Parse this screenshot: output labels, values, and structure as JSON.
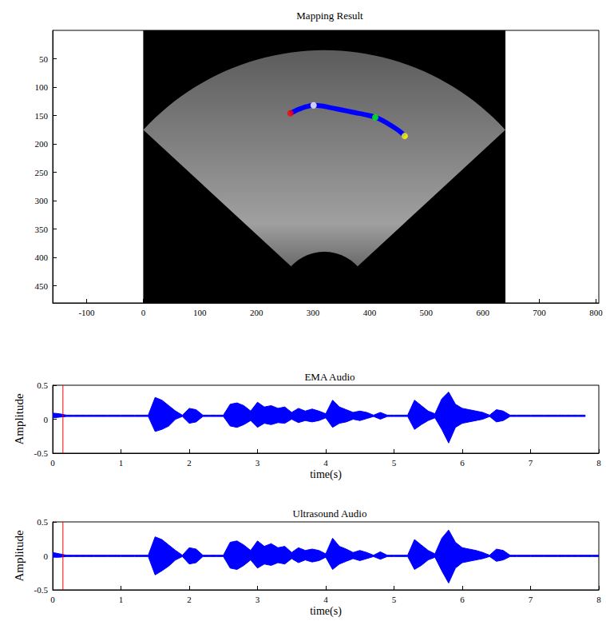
{
  "chart_data": [
    {
      "type": "line",
      "title": "Mapping Result",
      "xlim": [
        -160,
        805
      ],
      "xticks": [
        -100,
        0,
        100,
        200,
        300,
        400,
        500,
        600,
        700,
        800
      ],
      "ylim": [
        480,
        0
      ],
      "yticks": [
        50,
        100,
        150,
        200,
        250,
        300,
        350,
        400,
        450
      ],
      "grid": false,
      "image_extent": {
        "x": [
          0,
          640
        ],
        "y": [
          0,
          480
        ]
      },
      "x": [
        260,
        270,
        280,
        290,
        301,
        315,
        330,
        345,
        360,
        375,
        390,
        410,
        425,
        440,
        452,
        462
      ],
      "values": [
        146,
        141,
        137,
        134,
        132,
        133,
        136,
        139,
        142,
        145,
        148,
        153,
        160,
        169,
        177,
        186
      ],
      "color": "#0000ff",
      "markers": [
        {
          "x": 260,
          "y": 146,
          "color": "#ff0000"
        },
        {
          "x": 301,
          "y": 132,
          "color": "#ffffff"
        },
        {
          "x": 410,
          "y": 153,
          "color": "#00ff00"
        },
        {
          "x": 462,
          "y": 186,
          "color": "#ffff00"
        }
      ]
    },
    {
      "type": "area",
      "title": "EMA Audio",
      "xlabel": "time(s)",
      "ylabel": "Amplitude",
      "xlim": [
        0,
        8
      ],
      "xticks": [
        0,
        1,
        2,
        3,
        4,
        5,
        6,
        7,
        8
      ],
      "ylim": [
        -0.5,
        0.5
      ],
      "yticks": [
        -0.5,
        0,
        0.5
      ],
      "grid": false,
      "color": "#0000ff",
      "cursor": {
        "x": 0.15,
        "color": "#ff0000"
      },
      "x": [
        0,
        0.1,
        0.2,
        0.3,
        0.4,
        0.5,
        0.6,
        0.7,
        0.8,
        0.9,
        1,
        1.1,
        1.2,
        1.3,
        1.4,
        1.5,
        1.6,
        1.7,
        1.8,
        1.9,
        2,
        2.1,
        2.2,
        2.3,
        2.4,
        2.5,
        2.6,
        2.7,
        2.8,
        2.9,
        3,
        3.1,
        3.2,
        3.3,
        3.4,
        3.5,
        3.6,
        3.7,
        3.8,
        3.9,
        4,
        4.1,
        4.2,
        4.3,
        4.4,
        4.5,
        4.6,
        4.7,
        4.8,
        4.9,
        5,
        5.1,
        5.2,
        5.3,
        5.4,
        5.5,
        5.6,
        5.7,
        5.8,
        5.9,
        6,
        6.1,
        6.2,
        6.3,
        6.4,
        6.5,
        6.6,
        6.7,
        6.8,
        6.9,
        7,
        7.1,
        7.2,
        7.3,
        7.4,
        7.5,
        7.6,
        7.7,
        7.8
      ],
      "upper": [
        0.09,
        0.08,
        0.06,
        0.06,
        0.06,
        0.06,
        0.06,
        0.06,
        0.06,
        0.06,
        0.06,
        0.06,
        0.06,
        0.06,
        0.06,
        0.32,
        0.28,
        0.2,
        0.12,
        0.06,
        0.16,
        0.14,
        0.06,
        0.06,
        0.06,
        0.06,
        0.22,
        0.24,
        0.2,
        0.12,
        0.25,
        0.18,
        0.2,
        0.16,
        0.18,
        0.1,
        0.16,
        0.12,
        0.15,
        0.12,
        0.08,
        0.28,
        0.18,
        0.14,
        0.1,
        0.12,
        0.1,
        0.06,
        0.1,
        0.06,
        0.06,
        0.06,
        0.06,
        0.28,
        0.2,
        0.12,
        0.08,
        0.3,
        0.4,
        0.22,
        0.16,
        0.14,
        0.12,
        0.1,
        0.06,
        0.14,
        0.12,
        0.06,
        0.06,
        0.06,
        0.06,
        0.06,
        0.06,
        0.06,
        0.06,
        0.06,
        0.06,
        0.06,
        0.06
      ],
      "lower": [
        0.02,
        0.03,
        0.04,
        0.04,
        0.04,
        0.04,
        0.04,
        0.04,
        0.04,
        0.04,
        0.04,
        0.04,
        0.04,
        0.04,
        0.04,
        -0.18,
        -0.15,
        -0.1,
        0.0,
        0.04,
        -0.06,
        -0.04,
        0.04,
        0.04,
        0.04,
        0.04,
        -0.1,
        -0.12,
        -0.08,
        -0.02,
        -0.12,
        -0.06,
        -0.08,
        -0.05,
        -0.06,
        0.0,
        -0.05,
        -0.02,
        -0.04,
        -0.02,
        0.02,
        -0.12,
        -0.06,
        -0.04,
        0.0,
        -0.02,
        0.01,
        0.04,
        0.0,
        0.04,
        0.04,
        0.04,
        0.04,
        -0.15,
        -0.08,
        -0.02,
        0.02,
        -0.15,
        -0.35,
        -0.12,
        -0.06,
        -0.04,
        -0.02,
        0.0,
        0.04,
        -0.04,
        -0.02,
        0.04,
        0.04,
        0.04,
        0.04,
        0.04,
        0.04,
        0.04,
        0.04,
        0.04,
        0.04,
        0.04,
        0.04
      ]
    },
    {
      "type": "area",
      "title": "Ultrasound Audio",
      "xlabel": "time(s)",
      "ylabel": "Amplitude",
      "xlim": [
        0,
        8
      ],
      "xticks": [
        0,
        1,
        2,
        3,
        4,
        5,
        6,
        7,
        8
      ],
      "ylim": [
        -0.5,
        0.5
      ],
      "yticks": [
        -0.5,
        0,
        0.5
      ],
      "grid": false,
      "color": "#0000ff",
      "cursor": {
        "x": 0.15,
        "color": "#ff0000"
      },
      "x": [
        0,
        0.1,
        0.2,
        0.3,
        0.4,
        0.5,
        0.6,
        0.7,
        0.8,
        0.9,
        1,
        1.1,
        1.2,
        1.3,
        1.4,
        1.5,
        1.6,
        1.7,
        1.8,
        1.9,
        2,
        2.1,
        2.2,
        2.3,
        2.4,
        2.5,
        2.6,
        2.7,
        2.8,
        2.9,
        3,
        3.1,
        3.2,
        3.3,
        3.4,
        3.5,
        3.6,
        3.7,
        3.8,
        3.9,
        4,
        4.1,
        4.2,
        4.3,
        4.4,
        4.5,
        4.6,
        4.7,
        4.8,
        4.9,
        5,
        5.1,
        5.2,
        5.3,
        5.4,
        5.5,
        5.6,
        5.7,
        5.8,
        5.9,
        6,
        6.1,
        6.2,
        6.3,
        6.4,
        6.5,
        6.6,
        6.7,
        6.8,
        6.9,
        7,
        7.1,
        7.2,
        7.3,
        7.4,
        7.5,
        7.6,
        7.7,
        7.8,
        7.9,
        8
      ],
      "upper": [
        0.05,
        0.03,
        0.01,
        0.01,
        0.01,
        0.01,
        0.01,
        0.01,
        0.01,
        0.01,
        0.01,
        0.01,
        0.01,
        0.01,
        0.01,
        0.28,
        0.24,
        0.16,
        0.08,
        0.01,
        0.12,
        0.1,
        0.01,
        0.01,
        0.01,
        0.01,
        0.2,
        0.22,
        0.16,
        0.08,
        0.22,
        0.14,
        0.18,
        0.12,
        0.14,
        0.05,
        0.12,
        0.08,
        0.1,
        0.08,
        0.03,
        0.26,
        0.14,
        0.1,
        0.05,
        0.08,
        0.05,
        0.01,
        0.06,
        0.01,
        0.01,
        0.01,
        0.01,
        0.24,
        0.16,
        0.08,
        0.03,
        0.26,
        0.38,
        0.2,
        0.12,
        0.1,
        0.08,
        0.05,
        0.01,
        0.1,
        0.08,
        0.01,
        0.01,
        0.01,
        0.01,
        0.01,
        0.01,
        0.01,
        0.01,
        0.01,
        0.01,
        0.01,
        0.01,
        0.01,
        0.01
      ],
      "lower": [
        -0.02,
        -0.02,
        -0.01,
        -0.01,
        -0.01,
        -0.01,
        -0.01,
        -0.01,
        -0.01,
        -0.01,
        -0.01,
        -0.01,
        -0.01,
        -0.01,
        -0.01,
        -0.28,
        -0.22,
        -0.15,
        -0.06,
        -0.01,
        -0.12,
        -0.1,
        -0.01,
        -0.01,
        -0.01,
        -0.01,
        -0.18,
        -0.2,
        -0.14,
        -0.06,
        -0.18,
        -0.12,
        -0.14,
        -0.1,
        -0.12,
        -0.04,
        -0.1,
        -0.06,
        -0.09,
        -0.07,
        -0.02,
        -0.2,
        -0.12,
        -0.08,
        -0.04,
        -0.07,
        -0.04,
        -0.01,
        -0.05,
        -0.01,
        -0.01,
        -0.01,
        -0.01,
        -0.2,
        -0.14,
        -0.06,
        -0.02,
        -0.22,
        -0.4,
        -0.18,
        -0.1,
        -0.08,
        -0.06,
        -0.04,
        -0.01,
        -0.08,
        -0.06,
        -0.01,
        -0.01,
        -0.01,
        -0.01,
        -0.01,
        -0.01,
        -0.01,
        -0.01,
        -0.01,
        -0.01,
        -0.01,
        -0.01,
        -0.01,
        -0.01
      ]
    }
  ]
}
